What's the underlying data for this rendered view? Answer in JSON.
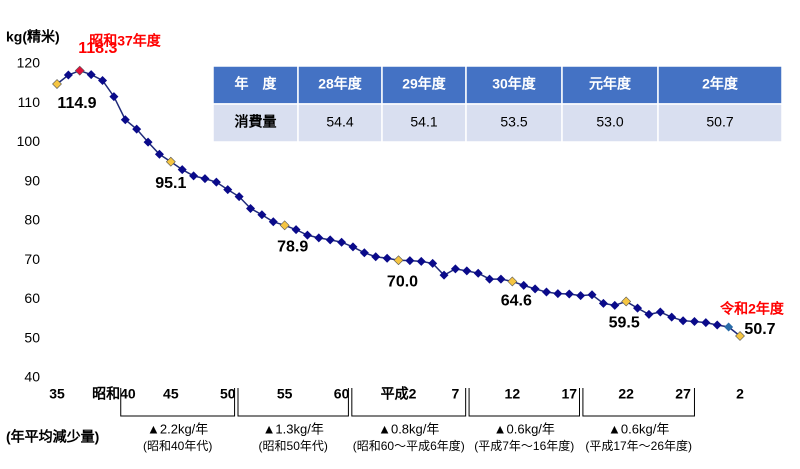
{
  "chart_data": {
    "type": "line",
    "y_axis_label": "kg(精米)",
    "categories": [
      "35",
      null,
      null,
      null,
      null,
      "昭和40",
      null,
      null,
      null,
      null,
      "45",
      null,
      null,
      null,
      null,
      "50",
      null,
      null,
      null,
      null,
      "55",
      null,
      null,
      null,
      null,
      "60",
      null,
      null,
      null,
      null,
      "平成2",
      null,
      null,
      null,
      null,
      "7",
      null,
      null,
      null,
      null,
      "12",
      null,
      null,
      null,
      null,
      "17",
      null,
      null,
      null,
      null,
      "22",
      null,
      null,
      null,
      null,
      "27",
      null,
      null,
      null,
      null,
      "2"
    ],
    "series": [
      {
        "name": "消費量",
        "color": "#1f2a7a",
        "values": [
          114.9,
          117.2,
          118.3,
          117.3,
          115.8,
          111.7,
          105.8,
          103.4,
          100.1,
          97.0,
          95.1,
          93.1,
          91.5,
          90.8,
          89.9,
          88.0,
          86.2,
          83.2,
          81.6,
          79.8,
          78.9,
          77.8,
          76.4,
          75.7,
          75.2,
          74.6,
          73.4,
          71.9,
          70.9,
          70.5,
          70.0,
          69.9,
          69.7,
          69.2,
          66.2,
          67.8,
          67.3,
          66.7,
          65.2,
          65.2,
          64.6,
          63.6,
          62.7,
          61.9,
          61.5,
          61.4,
          61.0,
          61.2,
          59.0,
          58.5,
          59.5,
          57.8,
          56.2,
          56.8,
          55.5,
          54.6,
          54.4,
          54.1,
          53.5,
          53.0,
          50.7
        ],
        "value_labels": [
          "114.9",
          null,
          "118.3",
          null,
          null,
          null,
          null,
          null,
          null,
          null,
          "95.1",
          null,
          null,
          null,
          null,
          null,
          null,
          null,
          null,
          null,
          "78.9",
          null,
          null,
          null,
          null,
          null,
          null,
          null,
          null,
          null,
          "70.0",
          null,
          null,
          null,
          null,
          null,
          null,
          null,
          null,
          null,
          "64.6",
          null,
          null,
          null,
          null,
          null,
          null,
          null,
          null,
          null,
          "59.5",
          null,
          null,
          null,
          null,
          null,
          null,
          null,
          null,
          null,
          "50.7"
        ]
      }
    ],
    "annotations": [
      {
        "text": "昭和37年度",
        "color": "#ff0000"
      },
      {
        "text": "令和2年度",
        "color": "#ff0000"
      }
    ],
    "ylim": [
      40,
      120
    ],
    "yticks": [
      40,
      50,
      60,
      70,
      80,
      90,
      100,
      110,
      120
    ],
    "footnote": "(年平均減少量)",
    "periods": [
      {
        "rate": "▲2.2kg/年",
        "era": "(昭和40年代)"
      },
      {
        "rate": "▲1.3kg/年",
        "era": "(昭和50年代)"
      },
      {
        "rate": "▲0.8kg/年",
        "era": "(昭和60～平成6年度)"
      },
      {
        "rate": "▲0.6kg/年",
        "era": "(平成7年～16年度)"
      },
      {
        "rate": "▲0.6kg/年",
        "era": "(平成17年～26年度)"
      }
    ]
  },
  "table": {
    "header": [
      "年　度",
      "28年度",
      "29年度",
      "30年度",
      "元年度",
      "2年度"
    ],
    "rows": [
      [
        "消費量",
        "54.4",
        "54.1",
        "53.5",
        "53.0",
        "50.7"
      ]
    ]
  }
}
